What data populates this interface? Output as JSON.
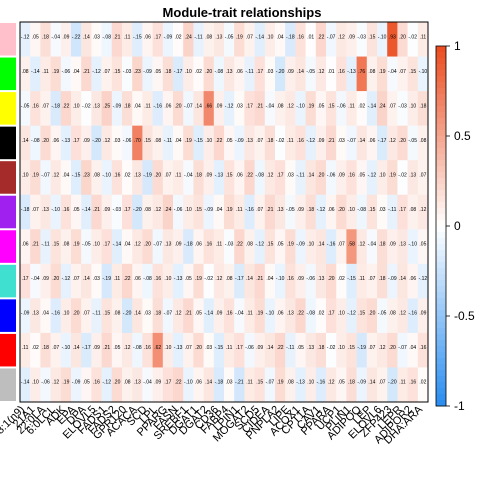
{
  "chart_data": {
    "type": "heatmap",
    "title": "Module-trait relationships",
    "modules": [
      "pink",
      "green",
      "yellow",
      "black",
      "brown",
      "purple",
      "magenta",
      "turquoise",
      "blue",
      "red",
      "grey"
    ],
    "module_colors": [
      "#ffc0cb",
      "#00ff00",
      "#ffff00",
      "#000000",
      "#a52a2a",
      "#a020f0",
      "#ff00ff",
      "#40e0d0",
      "#0000ff",
      "#ff0000",
      "#bebebe"
    ],
    "x_labels": [
      "18:1(n9)",
      "21A1",
      "22:0LA",
      "6:0LCL",
      "ADK",
      "EPA",
      "DPA",
      "ELOVL5",
      "FADS1",
      "FADS2",
      "GPR120",
      "ACACA",
      "SCD",
      "LPL",
      "PPARG",
      "FASN",
      "SREBF1",
      "DGAT1",
      "DGAT2",
      "CD36",
      "FABP4",
      "LPIN1",
      "MOGAT2",
      "SCD5",
      "CIDEA",
      "PNPLA2",
      "LIPE",
      "ACOX1",
      "CPT1A",
      "CAV1",
      "PPARA",
      "UCP1",
      "PLIN1",
      "ADIPOQ",
      "LEP",
      "ELOVL6",
      "ZFP423",
      "LEPR",
      "ADIPOR2",
      "DHA:ARA"
    ],
    "values_note": "module-trait correlation, 11 modules x 40 traits",
    "values": [
      [
        -0.12,
        0.05,
        0.18,
        -0.04,
        0.09,
        -0.22,
        0.14,
        0.03,
        -0.08,
        0.21,
        0.11,
        -0.15,
        0.06,
        0.17,
        -0.09,
        0.02,
        0.24,
        -0.11,
        0.08,
        0.13,
        -0.05,
        0.19,
        0.07,
        -0.14,
        0.1,
        0.04,
        -0.18,
        0.16,
        0.01,
        0.22,
        -0.07,
        0.12,
        0.09,
        -0.03,
        0.15,
        -0.1,
        0.93,
        0.2,
        -0.02,
        0.11
      ],
      [
        0.08,
        -0.14,
        0.11,
        0.19,
        -0.06,
        0.04,
        0.21,
        -0.12,
        0.07,
        0.15,
        -0.03,
        0.23,
        -0.09,
        0.05,
        0.18,
        -0.17,
        0.1,
        0.02,
        0.2,
        -0.08,
        0.13,
        0.06,
        -0.11,
        0.17,
        0.03,
        -0.2,
        0.09,
        0.14,
        -0.05,
        0.12,
        0.01,
        0.16,
        -0.13,
        0.76,
        0.08,
        0.19,
        -0.04,
        0.07,
        0.15,
        -0.1
      ],
      [
        -0.05,
        0.16,
        0.07,
        -0.18,
        0.22,
        0.1,
        -0.02,
        0.13,
        0.25,
        -0.09,
        0.18,
        0.04,
        0.11,
        -0.16,
        0.06,
        0.2,
        -0.07,
        0.14,
        0.66,
        0.09,
        -0.12,
        0.03,
        0.17,
        0.21,
        -0.04,
        0.08,
        0.12,
        -0.1,
        0.19,
        0.05,
        0.15,
        -0.06,
        0.11,
        0.02,
        -0.14,
        0.24,
        0.07,
        -0.03,
        0.1,
        0.18
      ],
      [
        0.14,
        -0.08,
        0.2,
        0.06,
        -0.13,
        0.17,
        0.09,
        -0.2,
        0.12,
        0.03,
        -0.06,
        0.7,
        0.15,
        0.08,
        -0.11,
        0.04,
        0.19,
        -0.15,
        0.1,
        0.22,
        0.05,
        -0.09,
        0.13,
        0.07,
        0.18,
        -0.02,
        0.11,
        0.16,
        -0.12,
        0.09,
        0.21,
        0.03,
        -0.07,
        0.14,
        0.06,
        -0.17,
        0.12,
        0.2,
        -0.05,
        0.08
      ],
      [
        0.1,
        0.19,
        -0.07,
        0.12,
        0.04,
        -0.15,
        0.23,
        0.08,
        -0.1,
        0.16,
        0.02,
        0.13,
        -0.19,
        0.2,
        0.07,
        0.11,
        -0.04,
        0.18,
        0.09,
        -0.13,
        0.15,
        0.06,
        0.22,
        -0.08,
        0.12,
        0.17,
        0.03,
        -0.11,
        0.14,
        0.2,
        -0.06,
        0.09,
        0.16,
        0.05,
        -0.12,
        0.1,
        0.19,
        -0.02,
        0.13,
        0.07
      ],
      [
        -0.18,
        0.07,
        0.13,
        -0.1,
        0.16,
        0.05,
        -0.14,
        0.21,
        0.09,
        -0.03,
        0.17,
        -0.2,
        0.08,
        0.12,
        0.24,
        -0.06,
        0.1,
        0.15,
        -0.09,
        0.04,
        0.19,
        0.11,
        -0.16,
        0.07,
        0.21,
        0.13,
        -0.05,
        0.09,
        0.18,
        -0.12,
        0.06,
        0.2,
        0.1,
        -0.08,
        0.15,
        0.03,
        -0.11,
        0.17,
        0.08,
        0.12
      ],
      [
        0.06,
        0.21,
        -0.11,
        0.15,
        0.08,
        0.19,
        -0.05,
        0.1,
        0.17,
        -0.14,
        0.04,
        0.12,
        0.2,
        -0.07,
        0.13,
        0.09,
        -0.18,
        0.06,
        0.16,
        0.11,
        -0.03,
        0.22,
        0.08,
        -0.12,
        0.15,
        0.05,
        0.19,
        -0.09,
        0.1,
        0.14,
        -0.16,
        0.07,
        0.58,
        0.12,
        -0.04,
        0.18,
        0.09,
        0.13,
        -0.1,
        0.05
      ],
      [
        0.17,
        -0.04,
        0.09,
        0.2,
        -0.12,
        0.07,
        0.14,
        0.03,
        -0.19,
        0.11,
        0.22,
        0.06,
        -0.08,
        0.16,
        0.1,
        -0.13,
        0.05,
        0.19,
        -0.02,
        0.12,
        0.08,
        -0.17,
        0.14,
        0.21,
        0.04,
        -0.1,
        0.16,
        0.09,
        -0.06,
        0.13,
        0.2,
        0.02,
        -0.15,
        0.11,
        0.07,
        0.18,
        -0.09,
        0.14,
        0.06,
        -0.12
      ],
      [
        -0.09,
        0.13,
        0.04,
        -0.16,
        0.1,
        0.2,
        0.07,
        -0.11,
        0.15,
        0.08,
        -0.2,
        0.14,
        0.03,
        0.18,
        -0.07,
        0.12,
        0.21,
        0.05,
        -0.14,
        0.09,
        0.16,
        -0.04,
        0.11,
        0.19,
        -0.1,
        0.06,
        0.13,
        0.22,
        -0.08,
        0.02,
        0.17,
        0.1,
        -0.12,
        0.15,
        0.2,
        -0.05,
        0.08,
        0.12,
        -0.16,
        0.09
      ],
      [
        0.11,
        0.02,
        0.18,
        0.07,
        -0.1,
        0.14,
        -0.17,
        0.09,
        0.21,
        0.05,
        0.12,
        -0.08,
        0.16,
        0.62,
        0.1,
        -0.13,
        0.07,
        0.2,
        0.03,
        -0.15,
        0.11,
        0.17,
        -0.06,
        0.09,
        0.14,
        0.22,
        -0.11,
        0.05,
        0.13,
        0.18,
        -0.02,
        0.1,
        0.15,
        -0.19,
        0.07,
        0.12,
        0.2,
        -0.07,
        0.04,
        0.16
      ],
      [
        -0.14,
        0.1,
        -0.06,
        0.12,
        0.19,
        -0.09,
        0.05,
        0.16,
        -0.12,
        0.2,
        0.08,
        0.13,
        -0.04,
        0.09,
        0.17,
        0.22,
        -0.1,
        0.06,
        0.14,
        -0.18,
        0.03,
        -0.21,
        0.11,
        0.15,
        -0.07,
        0.19,
        0.08,
        -0.13,
        0.1,
        -0.16,
        0.12,
        0.05,
        0.18,
        -0.09,
        0.14,
        0.07,
        -0.2,
        0.11,
        0.16,
        0.02
      ]
    ],
    "colorbar": {
      "ticks": [
        1,
        0.5,
        0,
        -0.5,
        -1
      ],
      "min": -1,
      "max": 1
    },
    "grid": false,
    "legend": "right"
  }
}
